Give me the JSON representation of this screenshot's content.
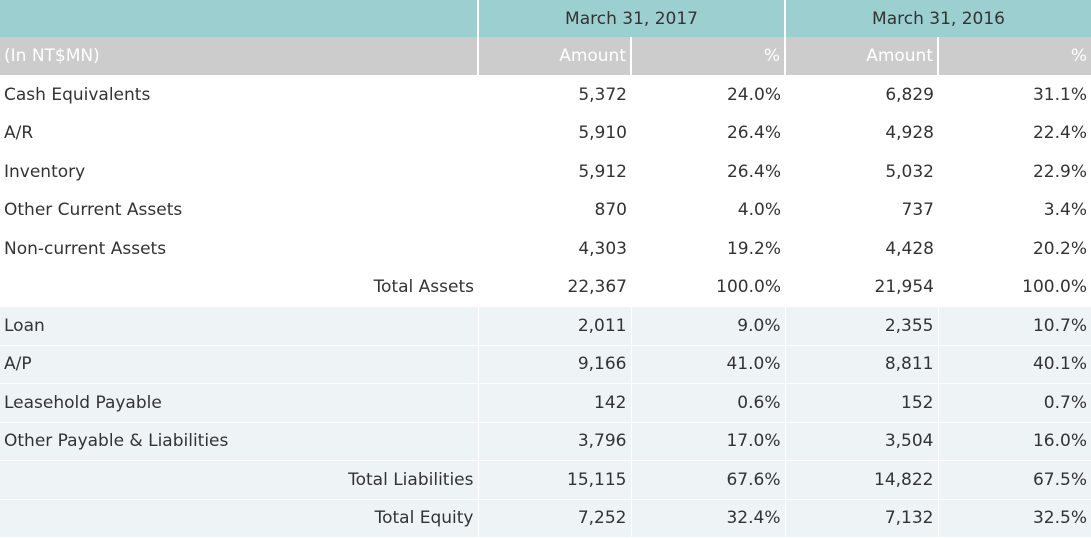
{
  "header": {
    "periods": [
      "March 31, 2017",
      "March 31, 2016"
    ]
  },
  "subheader": {
    "unit": "(In NT$MN)",
    "columns": [
      "Amount",
      "%",
      "Amount",
      "%"
    ]
  },
  "sections": [
    {
      "rows": [
        [
          "Cash Equivalents",
          "5,372",
          "24.0%",
          "6,829",
          "31.1%"
        ],
        [
          "A/R",
          "5,910",
          "26.4%",
          "4,928",
          "22.4%"
        ],
        [
          "Inventory",
          "5,912",
          "26.4%",
          "5,032",
          "22.9%"
        ],
        [
          "Other Current Assets",
          "870",
          "4.0%",
          "737",
          "3.4%"
        ],
        [
          "Non-current Assets",
          "4,303",
          "19.2%",
          "4,428",
          "20.2%"
        ]
      ],
      "totals": [
        [
          "Total Assets",
          "22,367",
          "100.0%",
          "21,954",
          "100.0%"
        ]
      ]
    },
    {
      "rows": [
        [
          "Loan",
          "2,011",
          "9.0%",
          "2,355",
          "10.7%"
        ],
        [
          "A/P",
          "9,166",
          "41.0%",
          "8,811",
          "40.1%"
        ],
        [
          "Leasehold Payable",
          "142",
          "0.6%",
          "152",
          "0.7%"
        ],
        [
          "Other Payable & Liabilities",
          "3,796",
          "17.0%",
          "3,504",
          "16.0%"
        ]
      ],
      "totals": [
        [
          "Total Liabilities",
          "15,115",
          "67.6%",
          "14,822",
          "67.5%"
        ],
        [
          "Total Equity",
          "7,252",
          "32.4%",
          "7,132",
          "32.5%"
        ]
      ]
    }
  ]
}
